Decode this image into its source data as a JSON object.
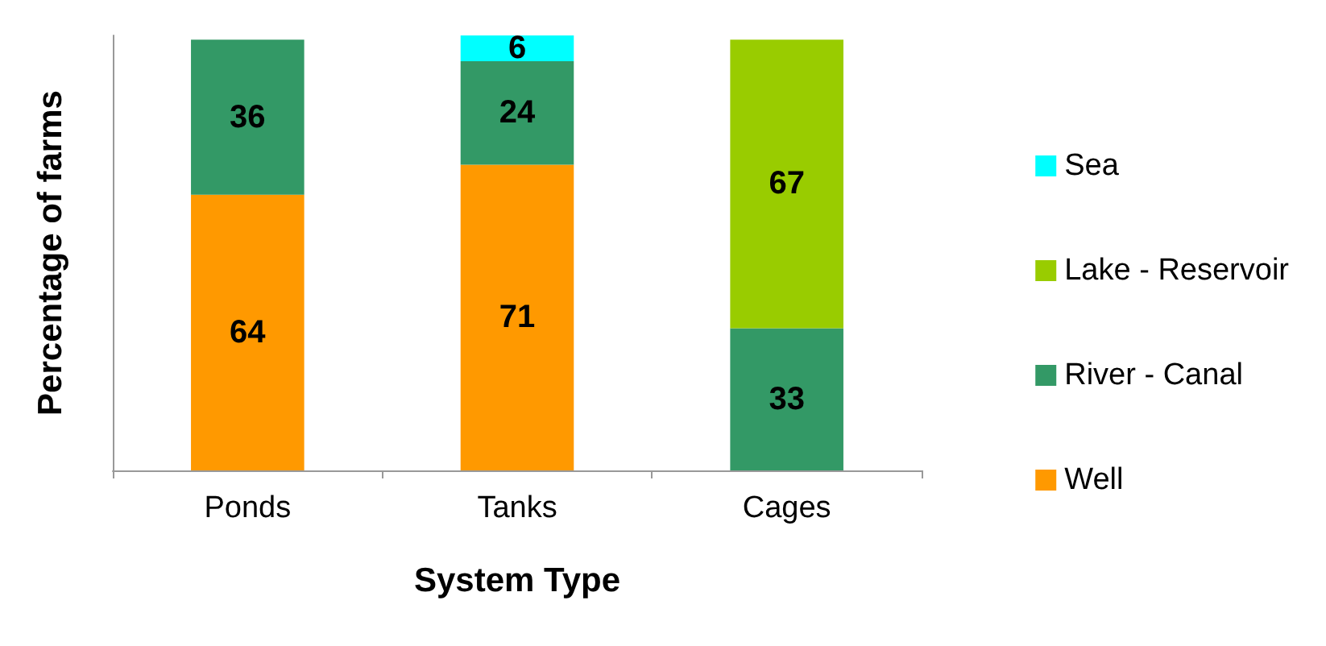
{
  "chart_data": {
    "type": "bar",
    "stacked": true,
    "xlabel": "System Type",
    "ylabel": "Percentage of farms",
    "categories": [
      "Ponds",
      "Tanks",
      "Cages"
    ],
    "series": [
      {
        "name": "Well",
        "color": "#ff9900",
        "values": [
          64,
          71,
          null
        ]
      },
      {
        "name": "River - Canal",
        "color": "#339966",
        "values": [
          36,
          24,
          33
        ]
      },
      {
        "name": "Lake - Reservoir",
        "color": "#99cc00",
        "values": [
          null,
          null,
          67
        ]
      },
      {
        "name": "Sea",
        "color": "#00ffff",
        "values": [
          null,
          6,
          null
        ]
      }
    ],
    "data_labels": true,
    "legend": "right",
    "grid": false,
    "tick_labels": "x"
  }
}
